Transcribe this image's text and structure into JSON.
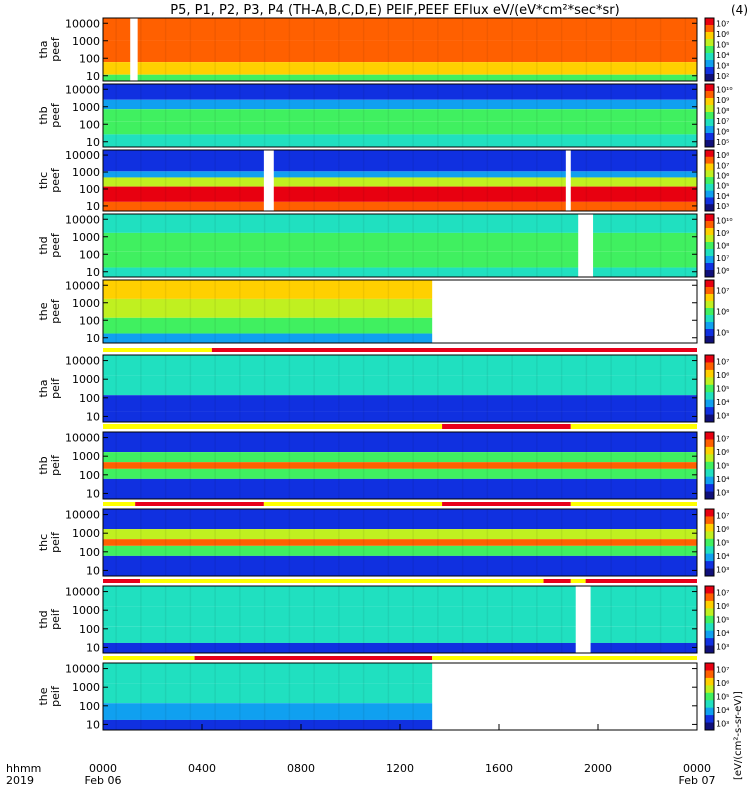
{
  "title": "P5, P1, P2, P3, P4 (TH-A,B,C,D,E) PEIF,PEEF EFlux eV/(eV*cm²*sec*sr)",
  "title_tail": "(4)",
  "colors": {
    "bar_red": "#e8001a",
    "bar_yellow": "#ffff00",
    "gap": "#ffffff"
  },
  "chart_data": {
    "type": "heatmap",
    "colormap": "rainbow (blue-low, red-high)",
    "y_scale": "log",
    "y_tick_labels": [
      "10000",
      "1000",
      "100",
      "10"
    ],
    "x_tick_labels": [
      "0000",
      "0400",
      "0800",
      "1200",
      "1600",
      "2000",
      "0000"
    ],
    "x_ticks_hours": [
      0,
      4,
      8,
      12,
      16,
      20,
      24
    ],
    "x_range_hours": [
      0,
      24
    ],
    "footer": {
      "row1_label": "hhmm",
      "row2_label": "2019",
      "date_start": "Feb 06",
      "date_end": "Feb 07"
    },
    "colorbar_units": "[eV/(cm²-s-sr-eV)]",
    "panels": [
      {
        "label_top": "tha",
        "label_bot": "peef",
        "bar": "tha-e",
        "colorbar": [
          "10⁷",
          "10⁶",
          "10⁵",
          "10⁴",
          "10³",
          "10²"
        ],
        "gaps": [
          [
            1.1,
            1.4
          ]
        ]
      },
      {
        "label_top": "thb",
        "label_bot": "peef",
        "bar": "thb-e",
        "colorbar": [
          "10¹⁰",
          "10⁹",
          "10⁸",
          "10⁷",
          "10⁶",
          "10⁵"
        ],
        "gaps": []
      },
      {
        "label_top": "thc",
        "label_bot": "peef",
        "bar": "thc-e",
        "colorbar": [
          "10⁸",
          "10⁷",
          "10⁶",
          "10⁵",
          "10⁴",
          "10³"
        ],
        "gaps": [
          [
            6.5,
            6.9
          ],
          [
            18.7,
            18.9
          ]
        ]
      },
      {
        "label_top": "thd",
        "label_bot": "peef",
        "bar": "thd-e",
        "colorbar": [
          "10¹⁰",
          "10⁹",
          "10⁸",
          "10⁷",
          "10⁶"
        ],
        "gaps": [
          [
            19.2,
            19.8
          ]
        ]
      },
      {
        "label_top": "the",
        "label_bot": "peef",
        "bar": "the-e",
        "colorbar": [
          "10⁷",
          "10⁶",
          "10⁵"
        ],
        "gaps": [],
        "data_end_hours": 13.3
      },
      {
        "label_top": "tha",
        "label_bot": "peif",
        "bar": "tha-i",
        "colorbar": [
          "10⁷",
          "10⁶",
          "10⁵",
          "10⁴",
          "10³"
        ],
        "gaps": []
      },
      {
        "label_top": "thb",
        "label_bot": "peif",
        "bar": "thb-i",
        "colorbar": [
          "10⁷",
          "10⁶",
          "10⁵",
          "10⁴",
          "10³"
        ],
        "gaps": []
      },
      {
        "label_top": "thc",
        "label_bot": "peif",
        "bar": "thc-i",
        "colorbar": [
          "10⁷",
          "10⁶",
          "10⁵",
          "10⁴",
          "10³"
        ],
        "gaps": []
      },
      {
        "label_top": "thd",
        "label_bot": "peif",
        "bar": "thd-i",
        "colorbar": [
          "10⁷",
          "10⁶",
          "10⁵",
          "10⁴",
          "10³"
        ],
        "gaps": [
          [
            19.1,
            19.7
          ]
        ]
      },
      {
        "label_top": "the",
        "label_bot": "peif",
        "bar": "the-i",
        "colorbar": [
          "10⁷",
          "10⁶",
          "10⁵",
          "10⁴",
          "10³"
        ],
        "gaps": [],
        "data_end_hours": 13.3
      }
    ],
    "status_bars": [
      {
        "after_panel": 4,
        "segments": [
          {
            "from": 0,
            "to": 4.4,
            "color": "yellow"
          },
          {
            "from": 4.4,
            "to": 24,
            "color": "red"
          }
        ]
      },
      {
        "after_panel": 5,
        "segments": [
          {
            "from": 0,
            "to": 13.7,
            "color": "yellow"
          },
          {
            "from": 13.7,
            "to": 18.9,
            "color": "red"
          },
          {
            "from": 18.9,
            "to": 24,
            "color": "yellow"
          }
        ]
      },
      {
        "after_panel": 6,
        "segments": [
          {
            "from": 0,
            "to": 1.3,
            "color": "yellow"
          },
          {
            "from": 1.3,
            "to": 6.5,
            "color": "red"
          },
          {
            "from": 6.5,
            "to": 13.7,
            "color": "yellow"
          },
          {
            "from": 13.7,
            "to": 18.9,
            "color": "red"
          },
          {
            "from": 18.9,
            "to": 24,
            "color": "yellow"
          }
        ]
      },
      {
        "after_panel": 7,
        "segments": [
          {
            "from": 0,
            "to": 1.5,
            "color": "red"
          },
          {
            "from": 1.5,
            "to": 17.8,
            "color": "yellow"
          },
          {
            "from": 17.8,
            "to": 18.9,
            "color": "red"
          },
          {
            "from": 18.9,
            "to": 19.5,
            "color": "yellow"
          },
          {
            "from": 19.5,
            "to": 24,
            "color": "red"
          }
        ]
      },
      {
        "after_panel": 8,
        "segments": [
          {
            "from": 0,
            "to": 3.7,
            "color": "yellow"
          },
          {
            "from": 3.7,
            "to": 13.3,
            "color": "red"
          },
          {
            "from": 13.3,
            "to": 24,
            "color": "yellow"
          }
        ]
      }
    ]
  }
}
